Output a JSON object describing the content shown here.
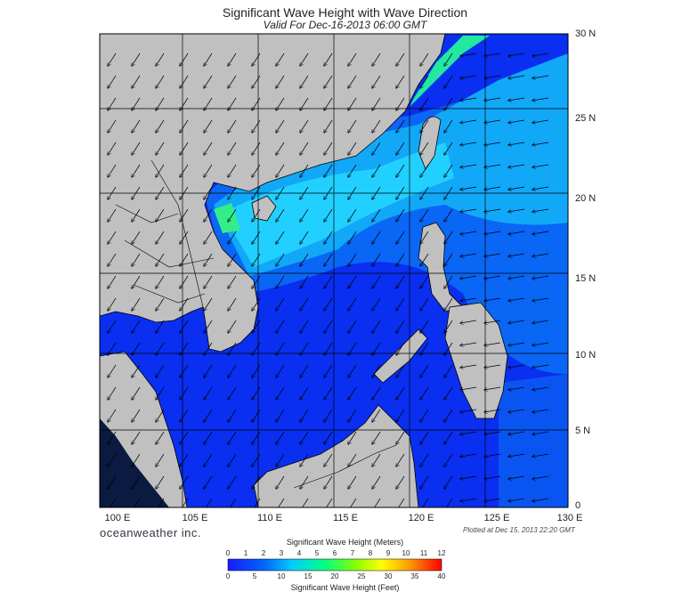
{
  "title": "Significant Wave Height with Wave Direction",
  "subtitle": "Valid For Dec-16-2013 06:00 GMT",
  "lat_labels": [
    "30 N",
    "25 N",
    "20 N",
    "15 N",
    "10 N",
    "5 N",
    "0"
  ],
  "lon_labels": [
    "100 E",
    "105 E",
    "110 E",
    "115 E",
    "120 E",
    "125 E",
    "130 E"
  ],
  "brand": "oceanweather inc.",
  "plotted": "Plotted at Dec 15, 2013 22:20 GMT",
  "legend": {
    "meters_title": "Significant Wave Height (Meters)",
    "feet_title": "Significant Wave Height (Feet)",
    "meters_ticks": [
      "0",
      "1",
      "2",
      "3",
      "4",
      "5",
      "6",
      "7",
      "8",
      "9",
      "10",
      "11",
      "12"
    ],
    "feet_ticks": [
      "0",
      "5",
      "10",
      "15",
      "20",
      "25",
      "30",
      "35",
      "40"
    ]
  },
  "colors": {
    "land": "#c0c0c0",
    "water_low": "#0033ee",
    "water_mid": "#00b8ff",
    "water_high": "#22ee66",
    "grid": "#000000"
  },
  "arrow_direction": "southwest"
}
